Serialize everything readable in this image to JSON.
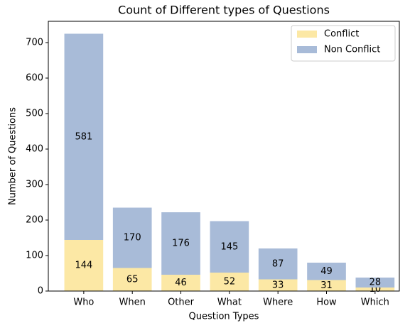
{
  "chart_data": {
    "type": "stacked_bar",
    "title": "Count of Different types of Questions",
    "x_label": "Question Types",
    "y_label": "Number of Questions",
    "categories": [
      "Who",
      "When",
      "Other",
      "What",
      "Where",
      "How",
      "Which"
    ],
    "series": [
      {
        "name": "Conflict",
        "color": "#fce8a5",
        "values": [
          144,
          65,
          46,
          52,
          33,
          31,
          10
        ]
      },
      {
        "name": "Non Conflict",
        "color": "#a8bbd8",
        "values": [
          581,
          170,
          176,
          145,
          87,
          49,
          28
        ]
      }
    ],
    "ylim": [
      0,
      760
    ],
    "yticks": [
      0,
      100,
      200,
      300,
      400,
      500,
      600,
      700
    ],
    "legend": "upper right",
    "grid": false
  }
}
